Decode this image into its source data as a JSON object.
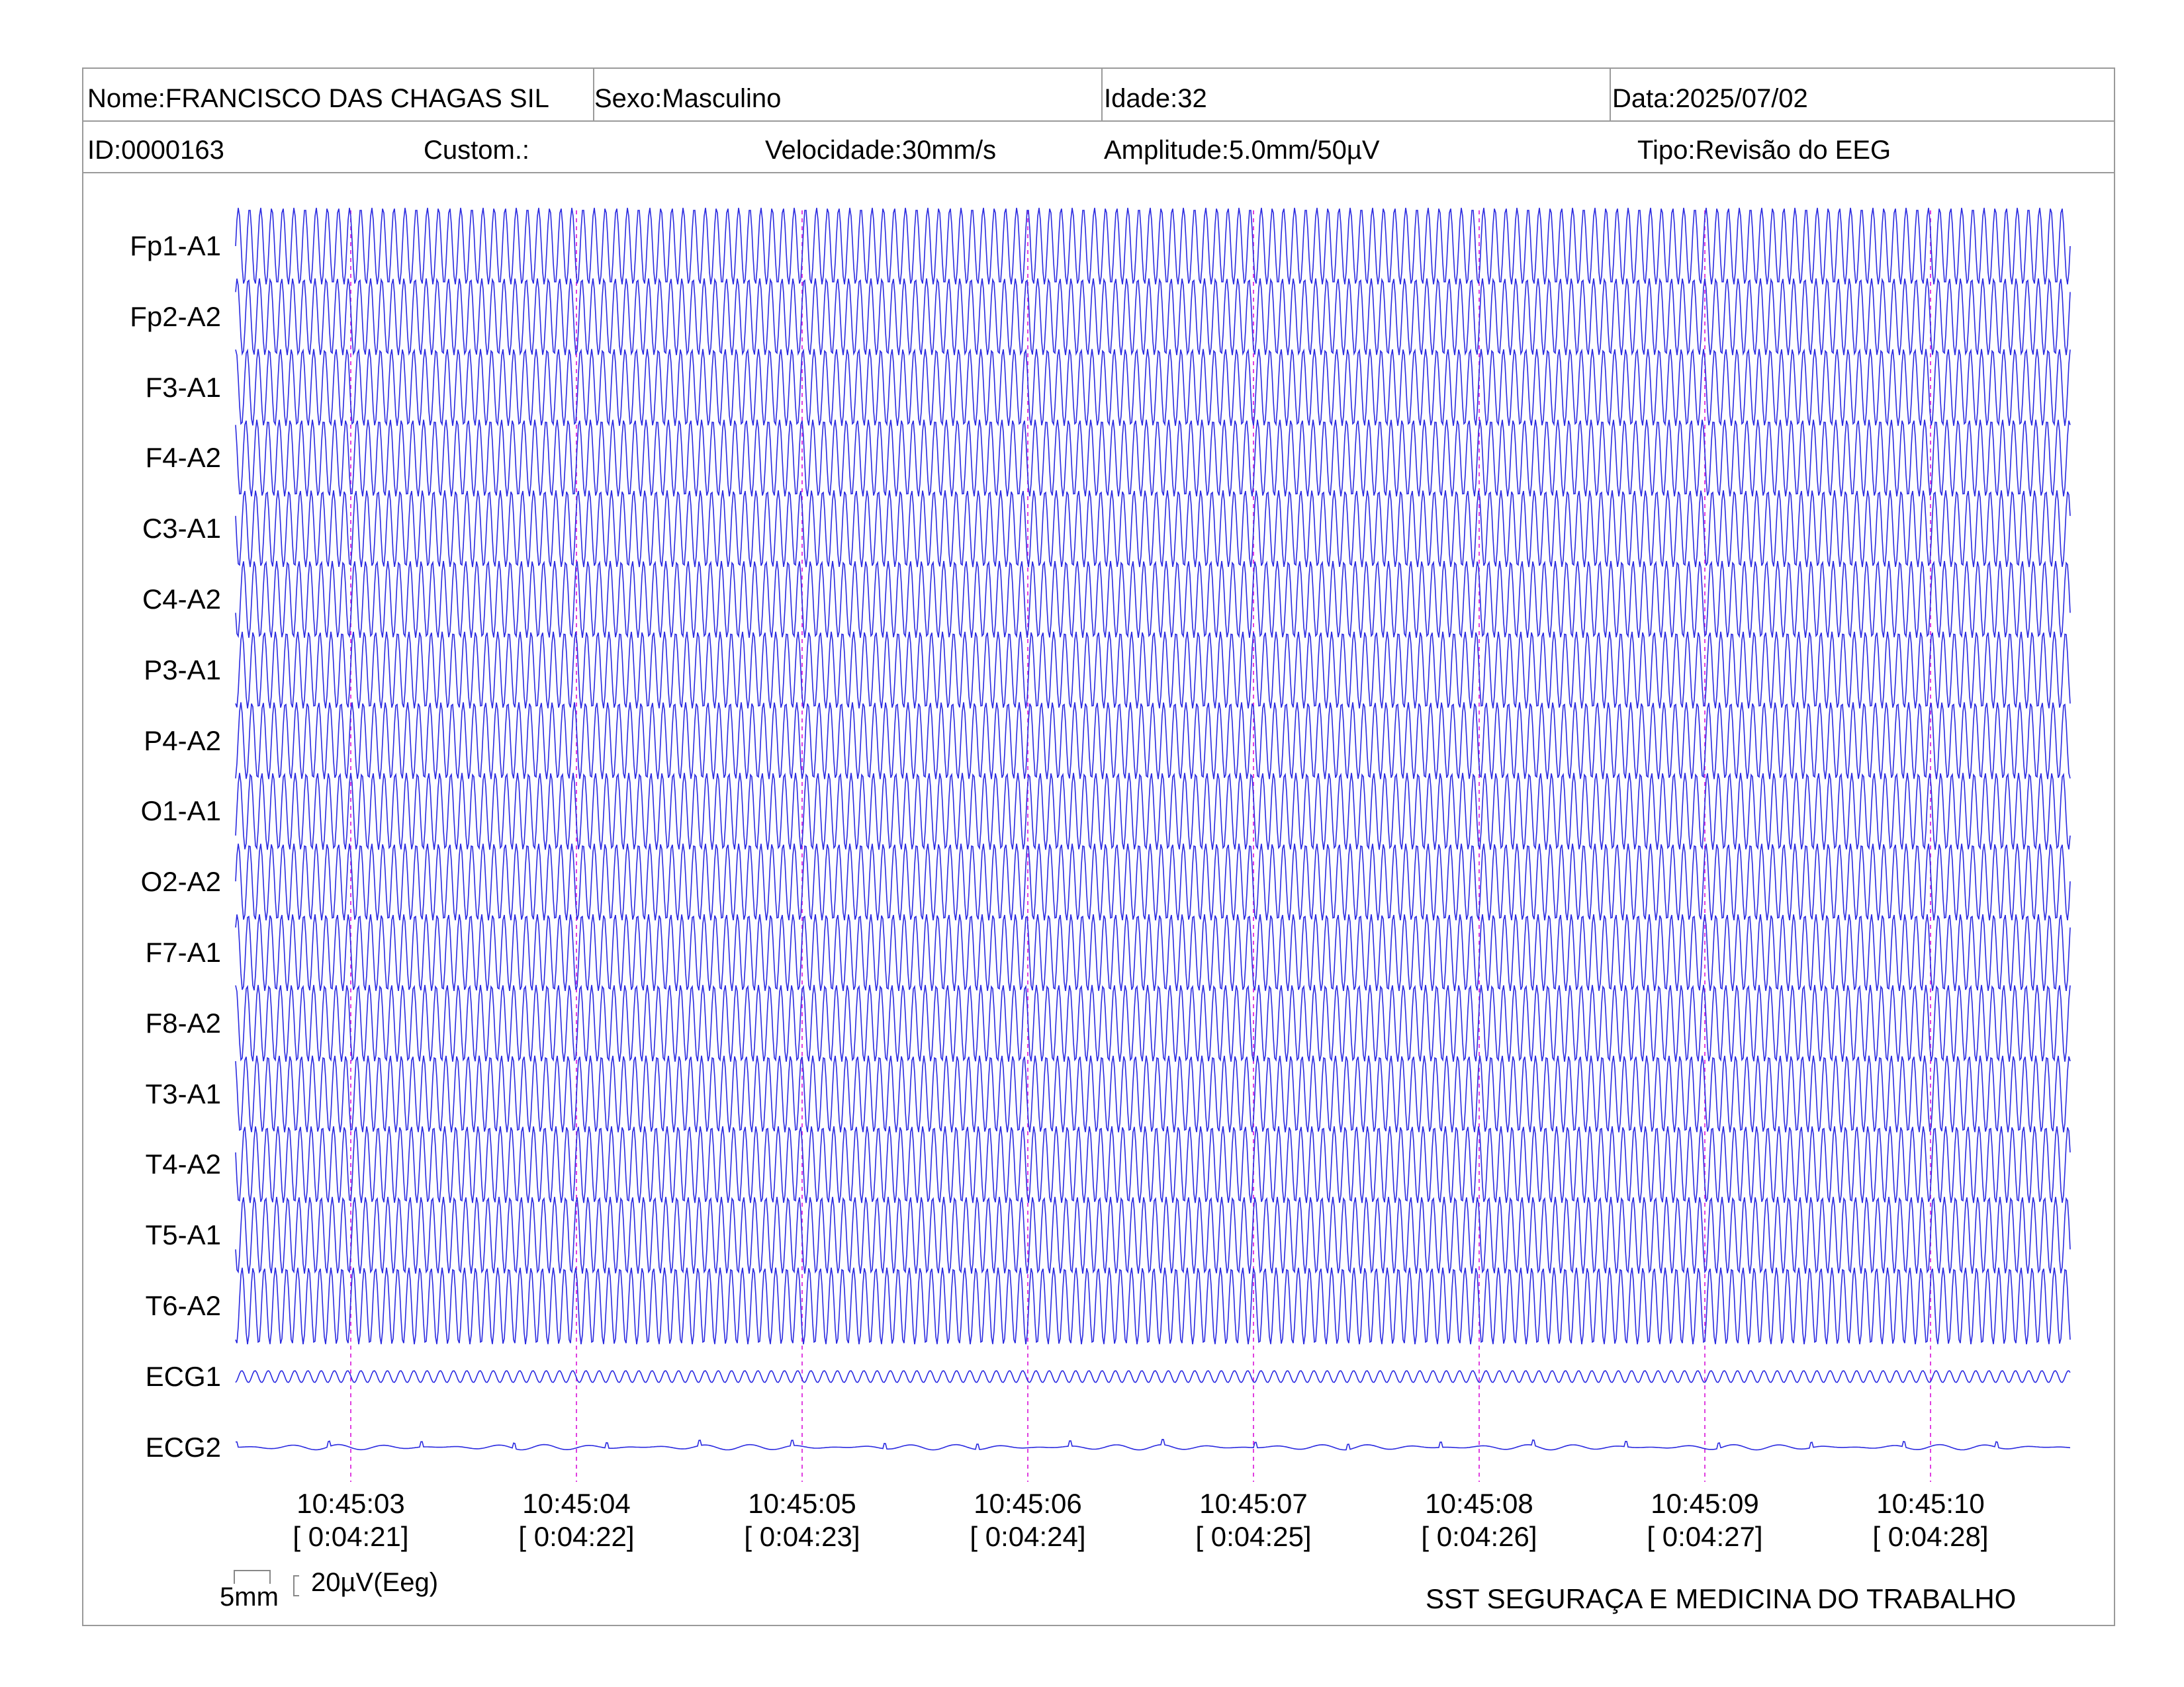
{
  "header": {
    "nome": "Nome:FRANCISCO DAS CHAGAS SIL",
    "sexo": "Sexo:Masculino",
    "idade": "Idade:32",
    "data": "Data:2025/07/02",
    "id": "ID:0000163",
    "custom": "Custom.:",
    "velocidade": "Velocidade:30mm/s",
    "amplitude": "Amplitude:5.0mm/50µV",
    "tipo": "Tipo:Revisão do EEG"
  },
  "channels": [
    "Fp1-A1",
    "Fp2-A2",
    "F3-A1",
    "F4-A2",
    "C3-A1",
    "C4-A2",
    "P3-A1",
    "P4-A2",
    "O1-A1",
    "O2-A2",
    "F7-A1",
    "F8-A2",
    "T3-A1",
    "T4-A2",
    "T5-A1",
    "T6-A2",
    "ECG1",
    "ECG2"
  ],
  "time_marks": [
    {
      "clock": "10:45:03",
      "elapsed": "[ 0:04:21]"
    },
    {
      "clock": "10:45:04",
      "elapsed": "[ 0:04:22]"
    },
    {
      "clock": "10:45:05",
      "elapsed": "[ 0:04:23]"
    },
    {
      "clock": "10:45:06",
      "elapsed": "[ 0:04:24]"
    },
    {
      "clock": "10:45:07",
      "elapsed": "[ 0:04:25]"
    },
    {
      "clock": "10:45:08",
      "elapsed": "[ 0:04:26]"
    },
    {
      "clock": "10:45:09",
      "elapsed": "[ 0:04:27]"
    },
    {
      "clock": "10:45:10",
      "elapsed": "[ 0:04:28]"
    }
  ],
  "scale": {
    "time_label": "5mm",
    "amp_label": "20µV(Eeg)"
  },
  "footer": "SST SEGURAÇA E MEDICINA DO TRABALHO",
  "colors": {
    "trace": "#2a2ae0",
    "time_marker": "#e040e0",
    "border": "#9a9a9a"
  }
}
